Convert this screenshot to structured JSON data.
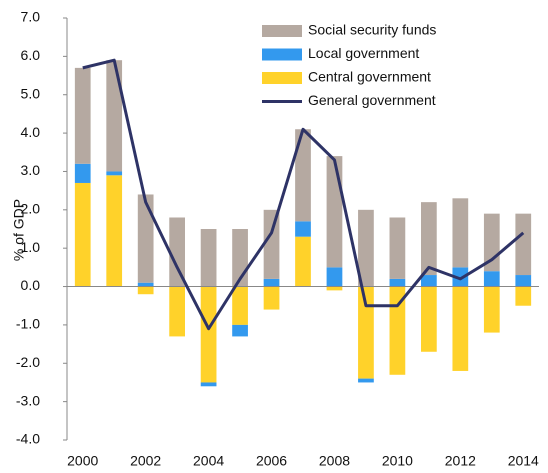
{
  "chart_data": {
    "type": "bar",
    "y_label": "% of GDP",
    "categories": [
      "2000",
      null,
      "2002",
      null,
      "2004",
      null,
      "2006",
      null,
      "2008",
      null,
      "2010",
      null,
      "2012",
      null,
      "2014"
    ],
    "series": [
      {
        "name": "Social security funds",
        "type": "bar",
        "color": "#b5a9a1",
        "values": [
          2.5,
          2.9,
          2.3,
          1.8,
          1.5,
          1.5,
          1.8,
          2.4,
          2.9,
          2.0,
          1.6,
          1.9,
          1.8,
          1.5,
          1.6
        ]
      },
      {
        "name": "Local government",
        "type": "bar",
        "color": "#3399ee",
        "values": [
          0.5,
          0.1,
          0.1,
          0.0,
          -0.1,
          -0.3,
          0.2,
          0.4,
          0.5,
          -0.1,
          0.2,
          0.3,
          0.5,
          0.4,
          0.3
        ]
      },
      {
        "name": "Central government",
        "type": "bar",
        "color": "#ffd22a",
        "values": [
          2.7,
          2.9,
          -0.2,
          -1.3,
          -2.5,
          -1.0,
          -0.6,
          1.3,
          -0.1,
          -2.4,
          -2.3,
          -1.7,
          -2.2,
          -1.2,
          -0.5
        ]
      },
      {
        "name": "General government",
        "type": "line",
        "color": "#2e3366",
        "values": [
          5.7,
          5.9,
          2.2,
          0.5,
          -1.1,
          0.2,
          1.4,
          4.1,
          3.3,
          -0.5,
          -0.5,
          0.5,
          0.2,
          0.7,
          1.4
        ]
      }
    ],
    "ylim": [
      -4,
      7
    ],
    "yticks": [
      {
        "value": -4,
        "label": "-4.0"
      },
      {
        "value": -3,
        "label": "-3.0"
      },
      {
        "value": -2,
        "label": "-2.0"
      },
      {
        "value": -1,
        "label": "-1.0"
      },
      {
        "value": 0,
        "label": "0.0"
      },
      {
        "value": 1,
        "label": "1.0"
      },
      {
        "value": 2,
        "label": "2.0"
      },
      {
        "value": 3,
        "label": "3.0"
      },
      {
        "value": 4,
        "label": "4.0"
      },
      {
        "value": 5,
        "label": "5.0"
      },
      {
        "value": 6,
        "label": "6.0"
      },
      {
        "value": 7,
        "label": "7.0"
      }
    ],
    "legend": "top-right"
  }
}
